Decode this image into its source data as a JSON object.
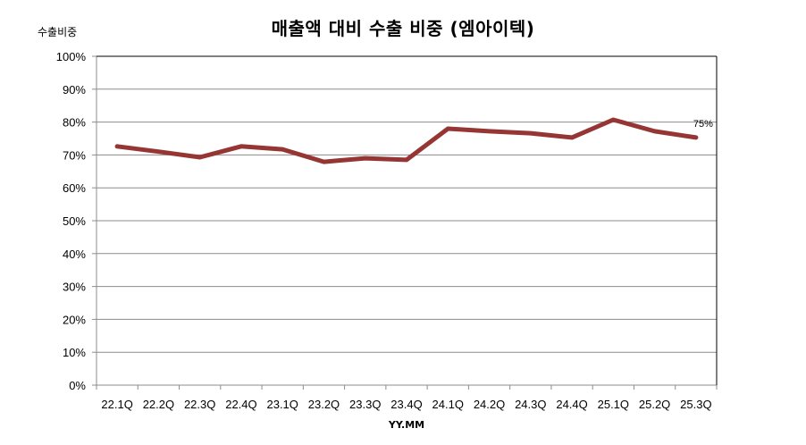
{
  "chart_data": {
    "type": "line",
    "title": "매출액 대비 수출 비중 (엠아이텍)",
    "xlabel": "YY.MM",
    "ylabel": "수출비중",
    "ylim": [
      0,
      100
    ],
    "yticks": [
      "0%",
      "10%",
      "20%",
      "30%",
      "40%",
      "50%",
      "60%",
      "70%",
      "80%",
      "90%",
      "100%"
    ],
    "grid": true,
    "legend": "none",
    "categories": [
      "22.1Q",
      "22.2Q",
      "22.3Q",
      "22.4Q",
      "23.1Q",
      "23.2Q",
      "23.3Q",
      "23.4Q",
      "24.1Q",
      "24.2Q",
      "24.3Q",
      "24.4Q",
      "25.1Q",
      "25.2Q",
      "25.3Q"
    ],
    "series": [
      {
        "name": "수출비중",
        "color": "#963634",
        "values": [
          72.6,
          71.0,
          69.3,
          72.6,
          71.7,
          67.9,
          69.0,
          68.5,
          78.0,
          77.2,
          76.6,
          75.3,
          80.7,
          77.2,
          75.3
        ]
      }
    ],
    "annotations": [
      {
        "category": "25.3Q",
        "text": "75%"
      }
    ]
  }
}
